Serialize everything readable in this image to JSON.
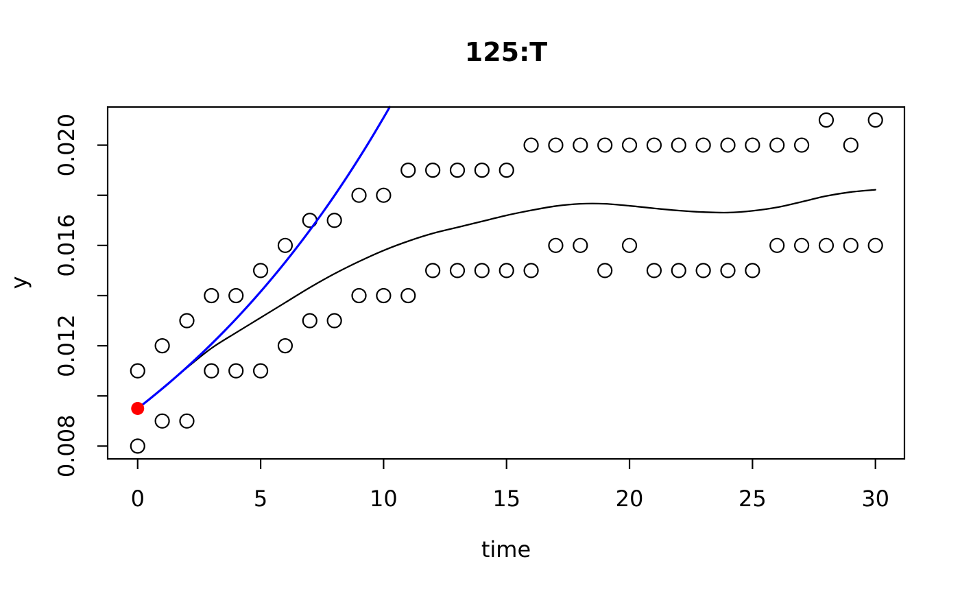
{
  "figure": {
    "title": "125:T",
    "x_axis_label": "time",
    "y_axis_label": "y"
  },
  "chart_data": {
    "type": "scatter",
    "title": "125:T",
    "xlabel": "time",
    "ylabel": "y",
    "xlim": [
      -1.22,
      31.18
    ],
    "ylim": [
      0.00749,
      0.02152
    ],
    "grid": false,
    "legend_position": "none",
    "x_ticks": [
      {
        "v": 0,
        "label": "0"
      },
      {
        "v": 5,
        "label": "5"
      },
      {
        "v": 10,
        "label": "10"
      },
      {
        "v": 15,
        "label": "15"
      },
      {
        "v": 20,
        "label": "20"
      },
      {
        "v": 25,
        "label": "25"
      },
      {
        "v": 30,
        "label": "30"
      }
    ],
    "y_ticks": [
      {
        "v": 0.008,
        "label": "0.008"
      },
      {
        "v": 0.01,
        "label": ""
      },
      {
        "v": 0.012,
        "label": "0.012"
      },
      {
        "v": 0.014,
        "label": ""
      },
      {
        "v": 0.016,
        "label": "0.016"
      },
      {
        "v": 0.018,
        "label": ""
      },
      {
        "v": 0.02,
        "label": "0.020"
      }
    ],
    "series": [
      {
        "name": "observations",
        "type": "points",
        "marker": "open-circle",
        "color": "#000000",
        "points": [
          [
            0,
            0.011
          ],
          [
            0,
            0.008
          ],
          [
            1,
            0.012
          ],
          [
            1,
            0.009
          ],
          [
            2,
            0.013
          ],
          [
            2,
            0.009
          ],
          [
            3,
            0.014
          ],
          [
            3,
            0.011
          ],
          [
            4,
            0.014
          ],
          [
            4,
            0.011
          ],
          [
            5,
            0.015
          ],
          [
            5,
            0.011
          ],
          [
            6,
            0.016
          ],
          [
            6,
            0.012
          ],
          [
            7,
            0.017
          ],
          [
            7,
            0.013
          ],
          [
            8,
            0.017
          ],
          [
            8,
            0.013
          ],
          [
            9,
            0.018
          ],
          [
            9,
            0.014
          ],
          [
            10,
            0.018
          ],
          [
            10,
            0.014
          ],
          [
            11,
            0.019
          ],
          [
            11,
            0.014
          ],
          [
            12,
            0.019
          ],
          [
            12,
            0.015
          ],
          [
            13,
            0.019
          ],
          [
            13,
            0.015
          ],
          [
            14,
            0.019
          ],
          [
            14,
            0.015
          ],
          [
            15,
            0.019
          ],
          [
            15,
            0.015
          ],
          [
            16,
            0.02
          ],
          [
            16,
            0.015
          ],
          [
            17,
            0.02
          ],
          [
            17,
            0.016
          ],
          [
            18,
            0.02
          ],
          [
            18,
            0.016
          ],
          [
            19,
            0.02
          ],
          [
            19,
            0.015
          ],
          [
            20,
            0.02
          ],
          [
            20,
            0.016
          ],
          [
            21,
            0.02
          ],
          [
            21,
            0.015
          ],
          [
            22,
            0.02
          ],
          [
            22,
            0.015
          ],
          [
            23,
            0.02
          ],
          [
            23,
            0.015
          ],
          [
            24,
            0.02
          ],
          [
            24,
            0.015
          ],
          [
            25,
            0.02
          ],
          [
            25,
            0.015
          ],
          [
            26,
            0.02
          ],
          [
            26,
            0.016
          ],
          [
            27,
            0.02
          ],
          [
            27,
            0.016
          ],
          [
            28,
            0.021
          ],
          [
            28,
            0.016
          ],
          [
            29,
            0.02
          ],
          [
            29,
            0.016
          ],
          [
            30,
            0.021
          ],
          [
            30,
            0.016
          ]
        ]
      },
      {
        "name": "smooth-fit-line",
        "type": "line",
        "color": "#000000",
        "width": 2.3,
        "points": [
          [
            0,
            0.0095
          ],
          [
            1,
            0.0103
          ],
          [
            2,
            0.01112
          ],
          [
            3,
            0.0119
          ],
          [
            4,
            0.01252
          ],
          [
            5,
            0.01312
          ],
          [
            6,
            0.01372
          ],
          [
            7,
            0.01432
          ],
          [
            8,
            0.01487
          ],
          [
            9,
            0.01536
          ],
          [
            10,
            0.0158
          ],
          [
            11,
            0.01617
          ],
          [
            12,
            0.01648
          ],
          [
            13,
            0.01672
          ],
          [
            14,
            0.01696
          ],
          [
            15,
            0.0172
          ],
          [
            16,
            0.0174
          ],
          [
            17,
            0.01757
          ],
          [
            18,
            0.01766
          ],
          [
            19,
            0.01766
          ],
          [
            20,
            0.01758
          ],
          [
            21,
            0.01748
          ],
          [
            22,
            0.01739
          ],
          [
            23,
            0.01733
          ],
          [
            24,
            0.01731
          ],
          [
            25,
            0.01738
          ],
          [
            26,
            0.01752
          ],
          [
            27,
            0.01774
          ],
          [
            28,
            0.01797
          ],
          [
            29,
            0.01813
          ],
          [
            30,
            0.01822
          ]
        ]
      },
      {
        "name": "exponential-fit-line",
        "type": "line",
        "color": "#0000ff",
        "width": 3.2,
        "points": [
          [
            0,
            0.0095
          ],
          [
            0.5,
            0.009887
          ],
          [
            1,
            0.010289
          ],
          [
            1.5,
            0.010708
          ],
          [
            2,
            0.011143
          ],
          [
            2.5,
            0.011597
          ],
          [
            3,
            0.012069
          ],
          [
            3.5,
            0.01256
          ],
          [
            4,
            0.013071
          ],
          [
            4.5,
            0.013603
          ],
          [
            5,
            0.014157
          ],
          [
            5.5,
            0.014733
          ],
          [
            6,
            0.015332
          ],
          [
            6.5,
            0.015956
          ],
          [
            7,
            0.016606
          ],
          [
            7.5,
            0.017281
          ],
          [
            8,
            0.017984
          ],
          [
            8.5,
            0.018716
          ],
          [
            9,
            0.019478
          ],
          [
            9.5,
            0.020271
          ],
          [
            10,
            0.021096
          ],
          [
            10.25,
            0.021521
          ]
        ]
      },
      {
        "name": "initial-value-point",
        "type": "points",
        "marker": "filled-circle",
        "color": "#ff0000",
        "points": [
          [
            0,
            0.0095
          ]
        ]
      }
    ]
  }
}
